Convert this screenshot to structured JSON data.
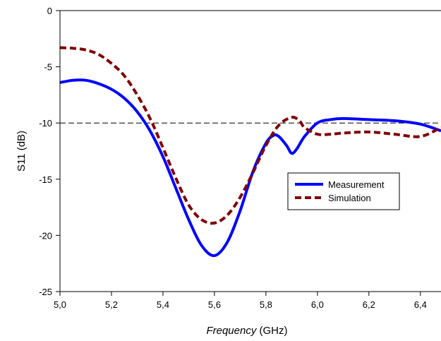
{
  "chart_data": {
    "type": "line",
    "title": "",
    "xlabel": {
      "italic_part": "Frequency",
      "rest": " (GHz)"
    },
    "ylabel": "S11 (dB)",
    "xlim": [
      5.0,
      6.48
    ],
    "ylim": [
      -25,
      0
    ],
    "x_ticks": [
      5.0,
      5.2,
      5.4,
      5.6,
      5.8,
      6.0,
      6.2,
      6.4
    ],
    "x_tick_labels": [
      "5,0",
      "5,2",
      "5,4",
      "5,6",
      "5,8",
      "6,0",
      "6,2",
      "6,4"
    ],
    "y_ticks": [
      0,
      -5,
      -10,
      -15,
      -20,
      -25
    ],
    "y_tick_labels": [
      "0",
      "-5",
      "-10",
      "-15",
      "-20",
      "-25"
    ],
    "grid": false,
    "reference_line": {
      "y": -10,
      "style": "dashed",
      "color": "#000000"
    },
    "legend": {
      "placement": "center-right",
      "entries": [
        "Measurement",
        "Simulation"
      ]
    },
    "series": [
      {
        "name": "Measurement",
        "color": "#0000ff",
        "dash": "solid",
        "x": [
          5.0,
          5.05,
          5.1,
          5.15,
          5.2,
          5.25,
          5.3,
          5.35,
          5.4,
          5.45,
          5.5,
          5.55,
          5.6,
          5.65,
          5.7,
          5.75,
          5.8,
          5.83,
          5.85,
          5.88,
          5.9,
          5.92,
          5.95,
          6.0,
          6.05,
          6.1,
          6.2,
          6.3,
          6.4,
          6.48
        ],
        "y": [
          -6.4,
          -6.2,
          -6.2,
          -6.5,
          -7.0,
          -7.8,
          -9.0,
          -10.7,
          -13.0,
          -15.8,
          -18.6,
          -20.9,
          -21.8,
          -20.6,
          -17.8,
          -14.3,
          -11.8,
          -11.1,
          -11.2,
          -12.0,
          -12.7,
          -12.3,
          -11.2,
          -10.0,
          -9.7,
          -9.6,
          -9.7,
          -9.8,
          -10.1,
          -10.7
        ]
      },
      {
        "name": "Simulation",
        "color": "#800000",
        "dash": "dashed",
        "x": [
          5.0,
          5.05,
          5.1,
          5.15,
          5.2,
          5.25,
          5.3,
          5.35,
          5.4,
          5.45,
          5.5,
          5.55,
          5.6,
          5.65,
          5.7,
          5.75,
          5.8,
          5.85,
          5.9,
          5.93,
          5.95,
          6.0,
          6.05,
          6.1,
          6.2,
          6.3,
          6.4,
          6.48
        ],
        "y": [
          -3.3,
          -3.35,
          -3.5,
          -3.9,
          -4.7,
          -5.8,
          -7.5,
          -9.6,
          -12.2,
          -14.9,
          -17.3,
          -18.6,
          -18.9,
          -18.2,
          -16.6,
          -14.4,
          -12.0,
          -10.2,
          -9.5,
          -9.8,
          -10.4,
          -11.0,
          -11.0,
          -10.9,
          -10.8,
          -11.0,
          -11.2,
          -10.4
        ]
      }
    ]
  }
}
